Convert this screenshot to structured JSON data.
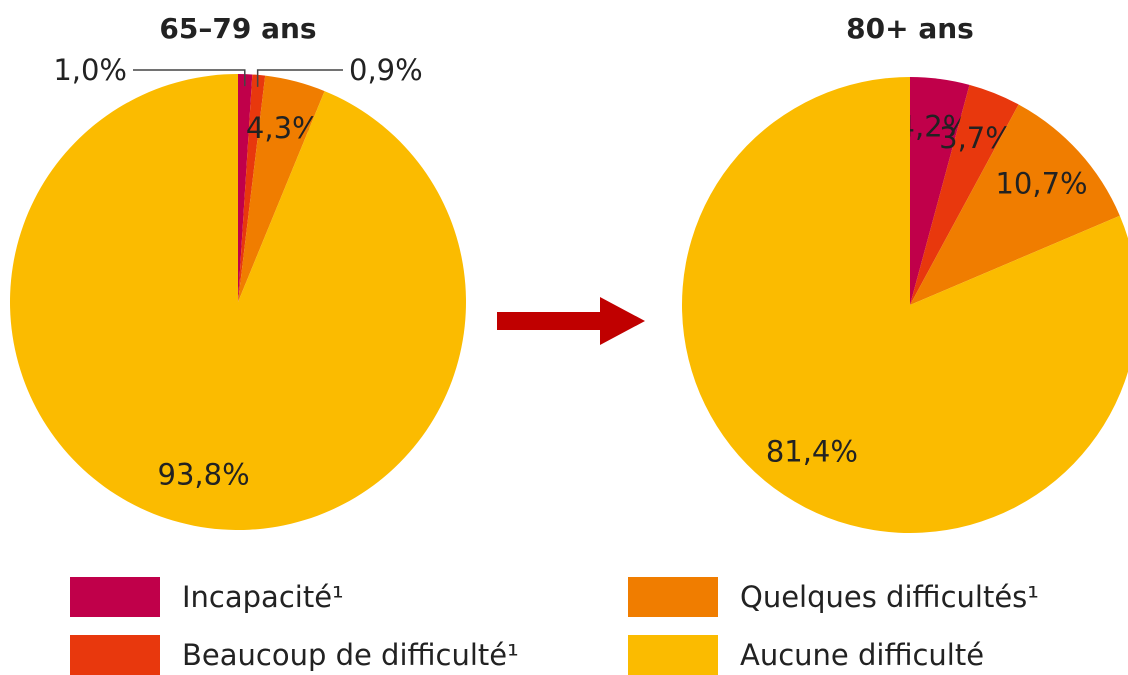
{
  "chart_data": [
    {
      "type": "pie",
      "title": "65–79 ans",
      "categories": [
        "Incapacité¹",
        "Beaucoup de difficulté¹",
        "Quelques difficultés¹",
        "Aucune difficulté"
      ],
      "values": [
        1.0,
        0.9,
        4.3,
        93.8
      ],
      "value_labels": [
        "1,0%",
        "0,9%",
        "4,3%",
        "93,8%"
      ],
      "colors": [
        "#c0004a",
        "#e8380d",
        "#f07d00",
        "#fbbb00"
      ]
    },
    {
      "type": "pie",
      "title": "80+ ans",
      "categories": [
        "Incapacité¹",
        "Beaucoup de difficulté¹",
        "Quelques difficultés¹",
        "Aucune difficulté"
      ],
      "values": [
        4.2,
        3.7,
        10.7,
        81.4
      ],
      "value_labels": [
        "4,2%",
        "3,7%",
        "10,7%",
        "81,4%"
      ],
      "colors": [
        "#c0004a",
        "#e8380d",
        "#f07d00",
        "#fbbb00"
      ]
    }
  ]
}
